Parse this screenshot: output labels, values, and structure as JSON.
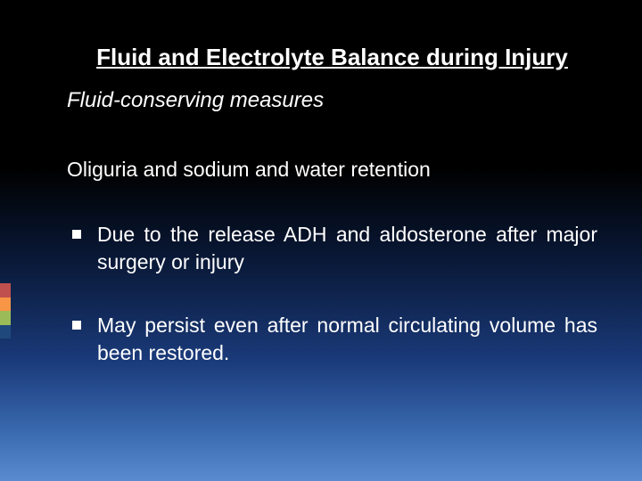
{
  "colors": {
    "text": "#ffffff",
    "bg_gradient": [
      "#000000",
      "#0a1a3a",
      "#1a3a7a",
      "#3a6ab0",
      "#5a8ad0"
    ],
    "accent": [
      "#c0504d",
      "#f79646",
      "#9bbb59",
      "#1f497d"
    ]
  },
  "typography": {
    "title_fontsize": 26,
    "title_weight": "bold",
    "subtitle_fontsize": 24,
    "subtitle_style": "italic",
    "body_fontsize": 23
  },
  "slide": {
    "title": "Fluid and Electrolyte Balance during Injury",
    "subtitle": "Fluid-conserving measures",
    "line": "Oliguria and sodium  and  water retention",
    "bullets": [
      "Due to the release ADH and aldosterone after major surgery or injury",
      "May persist even after normal circulating volume has been restored."
    ]
  }
}
